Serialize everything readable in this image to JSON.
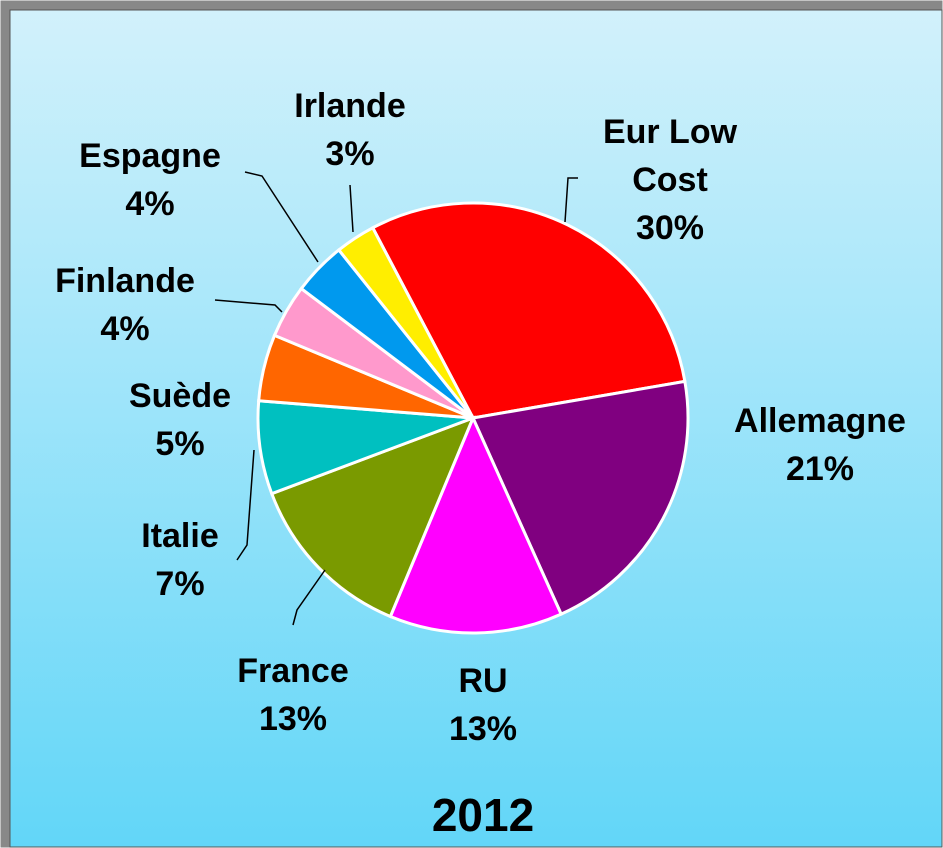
{
  "chart_data": {
    "type": "pie",
    "title": "2012",
    "categories": [
      "Eur Low Cost",
      "Allemagne",
      "RU",
      "France",
      "Italie",
      "Suède",
      "Finlande",
      "Espagne",
      "Irlande"
    ],
    "values": [
      30,
      21,
      13,
      13,
      7,
      5,
      4,
      4,
      3
    ],
    "value_labels": [
      "30%",
      "21%",
      "13%",
      "13%",
      "7%",
      "5%",
      "4%",
      "4%",
      "3%"
    ],
    "colors": [
      "#ff0000",
      "#800080",
      "#ff00ff",
      "#7a9a00",
      "#00c0c0",
      "#ff6600",
      "#ff99cc",
      "#0099ee",
      "#ffee00"
    ]
  }
}
